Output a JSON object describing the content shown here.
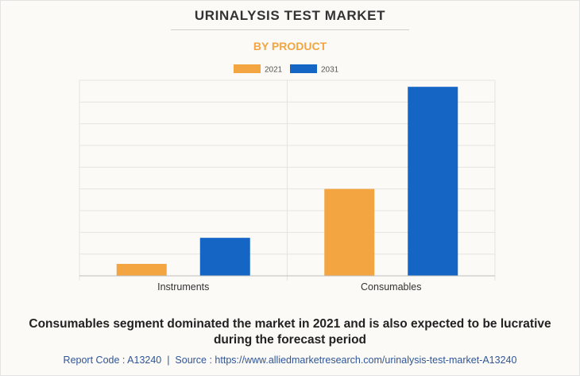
{
  "title": "URINALYSIS TEST MARKET",
  "subtitle": "BY PRODUCT",
  "caption": "Consumables segment dominated the market in 2021 and is also expected to be lucrative during the forecast period",
  "footer": {
    "report_code": "Report Code : A13240",
    "separator": "|",
    "source": "Source : https://www.alliedmarketresearch.com/urinalysis-test-market-A13240"
  },
  "colors": {
    "series_2021": "#f2a541",
    "series_2031": "#1565c5",
    "gridline": "#e4e4e4",
    "axis": "#bdbdbd"
  },
  "chart_data": {
    "type": "bar",
    "categories": [
      "Instruments",
      "Consumables"
    ],
    "series": [
      {
        "name": "2021",
        "values": [
          0.55,
          4.0
        ]
      },
      {
        "name": "2031",
        "values": [
          1.75,
          8.7
        ]
      }
    ],
    "ylim": [
      0,
      9
    ],
    "grid": true,
    "legend": "top-center",
    "y_tick_labels_shown": false
  }
}
